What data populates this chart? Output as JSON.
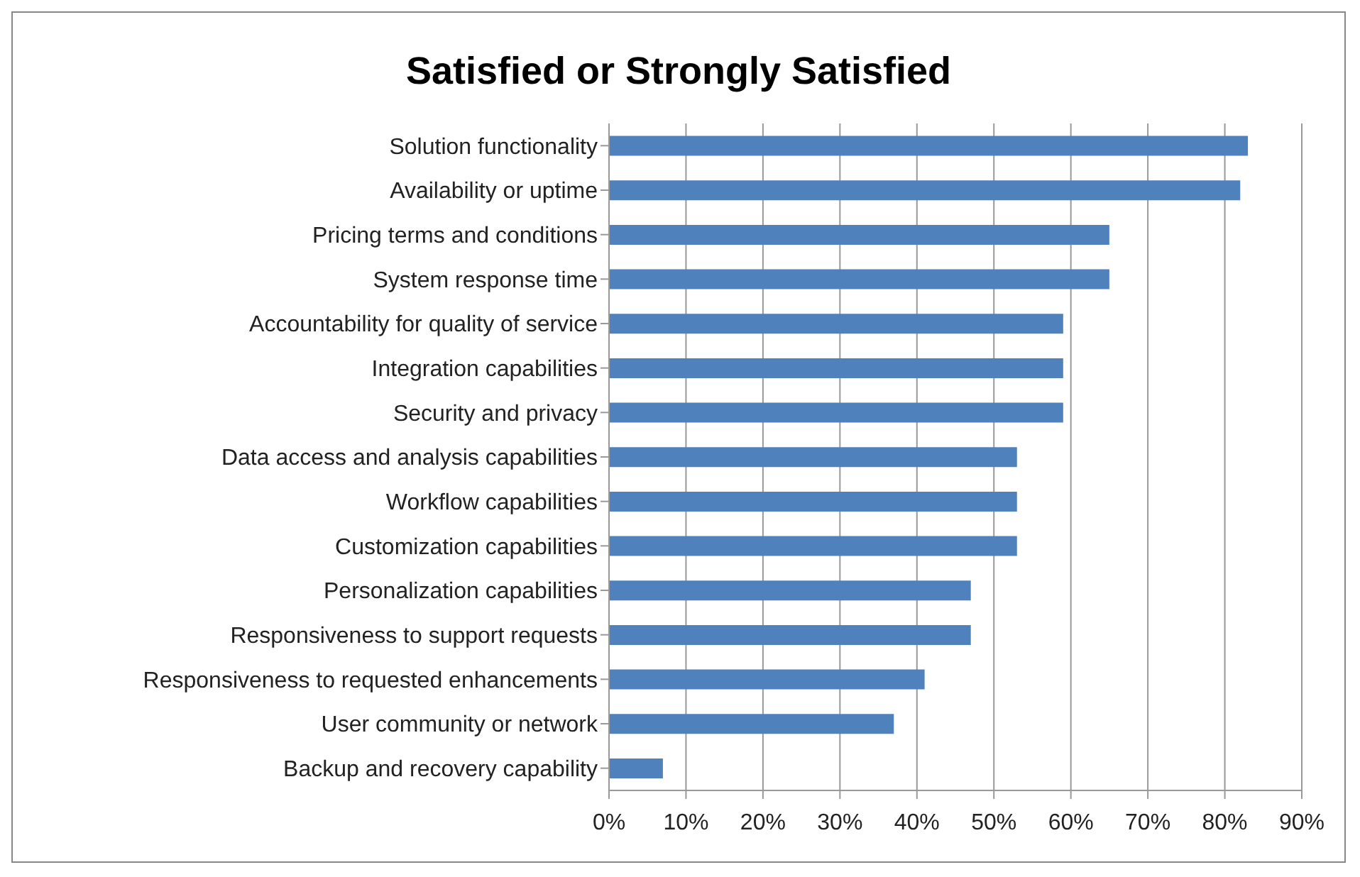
{
  "chart_data": {
    "type": "bar",
    "orientation": "horizontal",
    "title": "Satisfied or Strongly Satisfied",
    "categories": [
      "Solution functionality",
      "Availability or uptime",
      "Pricing terms and conditions",
      "System response time",
      "Accountability for quality of service",
      "Integration capabilities",
      "Security and privacy",
      "Data access and analysis capabilities",
      "Workflow capabilities",
      "Customization capabilities",
      "Personalization capabilities",
      "Responsiveness to support requests",
      "Responsiveness to requested enhancements",
      "User community or network",
      "Backup and recovery capability"
    ],
    "values": [
      83,
      82,
      65,
      65,
      59,
      59,
      59,
      53,
      53,
      53,
      47,
      47,
      41,
      37,
      7
    ],
    "color": "#4f81bd",
    "xlim": [
      0,
      90
    ],
    "xticks": [
      {
        "value": 0,
        "label": "0%"
      },
      {
        "value": 10,
        "label": "10%"
      },
      {
        "value": 20,
        "label": "20%"
      },
      {
        "value": 30,
        "label": "30%"
      },
      {
        "value": 40,
        "label": "40%"
      },
      {
        "value": 50,
        "label": "50%"
      },
      {
        "value": 60,
        "label": "60%"
      },
      {
        "value": 70,
        "label": "70%"
      },
      {
        "value": 80,
        "label": "80%"
      },
      {
        "value": 90,
        "label": "90%"
      }
    ],
    "grid": "x"
  }
}
